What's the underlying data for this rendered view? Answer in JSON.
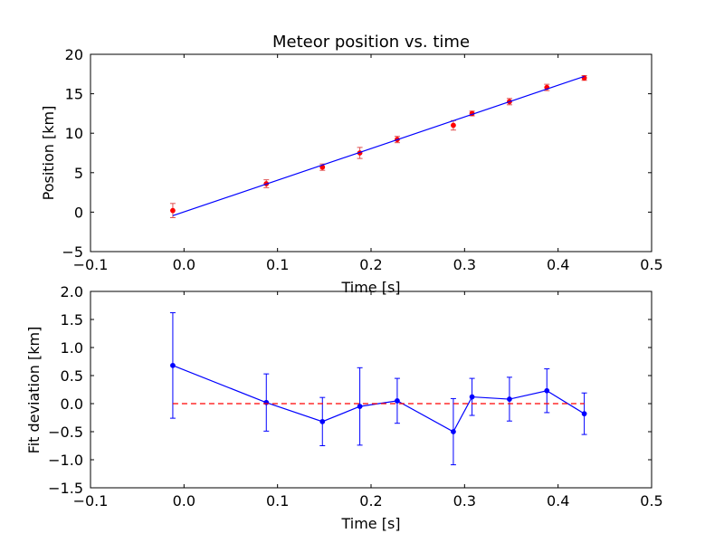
{
  "chart_data": [
    {
      "type": "scatter",
      "title": "Meteor position vs. time",
      "xlabel": "Time [s]",
      "ylabel": "Position [km]",
      "xlim": [
        -0.1,
        0.5
      ],
      "ylim": [
        -5,
        20
      ],
      "xticks": [
        -0.1,
        0.0,
        0.1,
        0.2,
        0.3,
        0.4,
        0.5
      ],
      "xtick_labels": [
        "−0.1",
        "0.0",
        "0.1",
        "0.2",
        "0.3",
        "0.4",
        "0.5"
      ],
      "yticks": [
        -5,
        0,
        5,
        10,
        15,
        20
      ],
      "ytick_labels": [
        "−5",
        "0",
        "5",
        "10",
        "15",
        "20"
      ],
      "grid": false,
      "series": [
        {
          "kind": "points_with_errorbars",
          "color": "#ff0000",
          "errorbar_color": "#e05050",
          "x": [
            -0.012,
            0.088,
            0.148,
            0.188,
            0.228,
            0.288,
            0.308,
            0.348,
            0.388,
            0.428
          ],
          "y": [
            0.2,
            3.6,
            5.7,
            7.5,
            9.2,
            11.0,
            12.5,
            14.0,
            15.8,
            17.0
          ],
          "err": [
            0.9,
            0.5,
            0.4,
            0.7,
            0.4,
            0.6,
            0.3,
            0.4,
            0.4,
            0.3
          ]
        },
        {
          "kind": "fit_line",
          "color": "#0000ff",
          "x": [
            -0.012,
            0.428
          ],
          "y": [
            -0.45,
            17.2
          ]
        }
      ]
    },
    {
      "type": "line",
      "title": "",
      "xlabel": "Time [s]",
      "ylabel": "Fit deviation [km]",
      "xlim": [
        -0.1,
        0.5
      ],
      "ylim": [
        -1.5,
        2.0
      ],
      "xticks": [
        -0.1,
        0.0,
        0.1,
        0.2,
        0.3,
        0.4,
        0.5
      ],
      "xtick_labels": [
        "−0.1",
        "0.0",
        "0.1",
        "0.2",
        "0.3",
        "0.4",
        "0.5"
      ],
      "yticks": [
        -1.5,
        -1.0,
        -0.5,
        0.0,
        0.5,
        1.0,
        1.5,
        2.0
      ],
      "ytick_labels": [
        "−1.5",
        "−1.0",
        "−0.5",
        "0.0",
        "0.5",
        "1.0",
        "1.5",
        "2.0"
      ],
      "grid": false,
      "series": [
        {
          "kind": "line_with_errorbars",
          "color": "#0000ff",
          "x": [
            -0.012,
            0.088,
            0.148,
            0.188,
            0.228,
            0.288,
            0.308,
            0.348,
            0.388,
            0.428
          ],
          "y": [
            0.68,
            0.02,
            -0.32,
            -0.05,
            0.05,
            -0.5,
            0.12,
            0.08,
            0.23,
            -0.18
          ],
          "err": [
            0.94,
            0.51,
            0.43,
            0.69,
            0.4,
            0.59,
            0.33,
            0.39,
            0.39,
            0.37
          ]
        },
        {
          "kind": "reference_line",
          "color": "#ff0000",
          "style": "dashed",
          "x": [
            -0.012,
            0.428
          ],
          "y": [
            0.0,
            0.0
          ]
        }
      ]
    }
  ]
}
